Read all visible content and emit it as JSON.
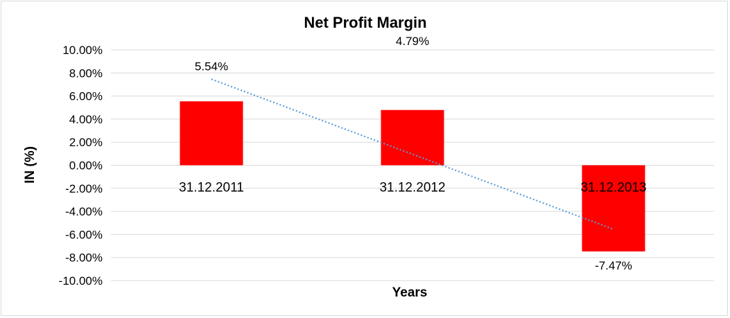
{
  "chart_data": {
    "type": "bar",
    "title": "Net Profit Margin",
    "xlabel": "Years",
    "ylabel": "IN (%)",
    "categories": [
      "31.12.2011",
      "31.12.2012",
      "31.12.2013"
    ],
    "values": [
      5.54,
      4.79,
      -7.47
    ],
    "data_labels": [
      "5.54%",
      "4.79%",
      "-7.47%"
    ],
    "ylim": [
      -10,
      10
    ],
    "yticks": [
      10,
      8,
      6,
      4,
      2,
      0,
      -2,
      -4,
      -6,
      -8,
      -10
    ],
    "ytick_labels": [
      "10.00%",
      "8.00%",
      "6.00%",
      "4.00%",
      "2.00%",
      "0.00%",
      "-2.00%",
      "-4.00%",
      "-6.00%",
      "-8.00%",
      "-10.00%"
    ],
    "grid": true,
    "trendline": "linear",
    "colors": {
      "bar": "#ff0000",
      "trendline": "#5b9bd5",
      "grid": "#d9d9d9"
    }
  }
}
